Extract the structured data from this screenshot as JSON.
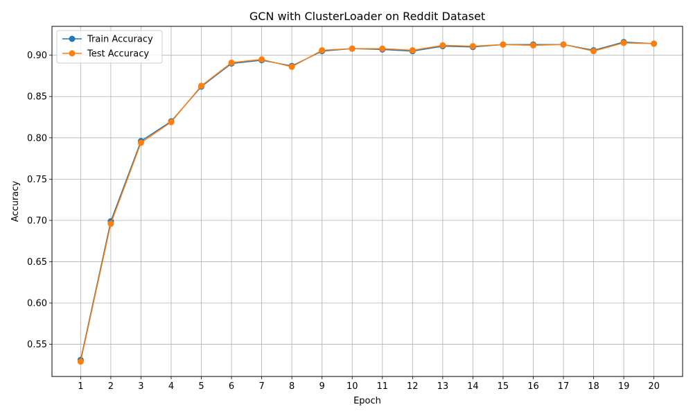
{
  "chart_data": {
    "type": "line",
    "title": "GCN with ClusterLoader on Reddit Dataset",
    "xlabel": "Epoch",
    "ylabel": "Accuracy",
    "x": [
      1,
      2,
      3,
      4,
      5,
      6,
      7,
      8,
      9,
      10,
      11,
      12,
      13,
      14,
      15,
      16,
      17,
      18,
      19,
      20
    ],
    "xticks": [
      "1",
      "2",
      "3",
      "4",
      "5",
      "6",
      "7",
      "8",
      "9",
      "10",
      "11",
      "12",
      "13",
      "14",
      "15",
      "16",
      "17",
      "18",
      "19",
      "20"
    ],
    "yticks": [
      "0.55",
      "0.60",
      "0.65",
      "0.70",
      "0.75",
      "0.80",
      "0.85",
      "0.90"
    ],
    "ylim": [
      0.511,
      0.935
    ],
    "xlim": [
      0.05,
      20.95
    ],
    "grid": true,
    "legend_position": "top-left",
    "series": [
      {
        "name": "Train Accuracy",
        "color": "#1f77b4",
        "marker": "circle",
        "values": [
          0.531,
          0.699,
          0.796,
          0.82,
          0.862,
          0.89,
          0.894,
          0.887,
          0.905,
          0.908,
          0.907,
          0.905,
          0.911,
          0.91,
          0.913,
          0.913,
          0.913,
          0.906,
          0.916,
          0.914
        ]
      },
      {
        "name": "Test Accuracy",
        "color": "#ff7f0e",
        "marker": "circle",
        "values": [
          0.529,
          0.696,
          0.794,
          0.819,
          0.863,
          0.891,
          0.895,
          0.886,
          0.906,
          0.908,
          0.908,
          0.906,
          0.912,
          0.911,
          0.913,
          0.912,
          0.913,
          0.905,
          0.915,
          0.914
        ]
      }
    ]
  }
}
